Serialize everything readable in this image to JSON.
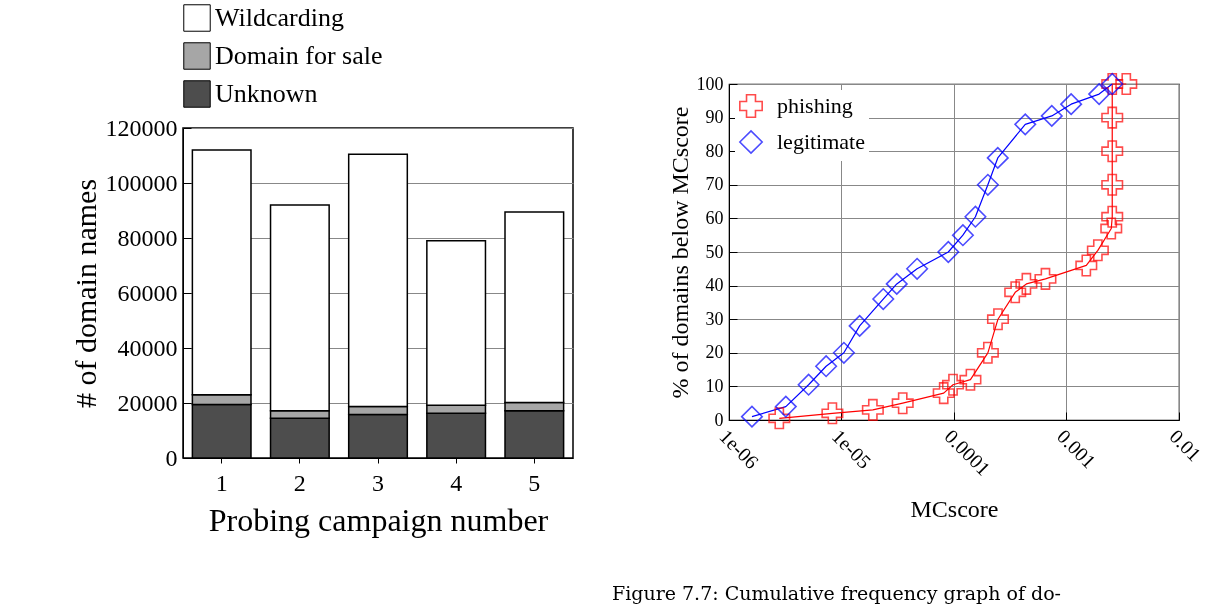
{
  "chart_data": [
    {
      "type": "bar",
      "xlabel": "Probing campaign number",
      "ylabel": "# of domain names",
      "categories": [
        "1",
        "2",
        "3",
        "4",
        "5"
      ],
      "stacked": true,
      "legend": "top",
      "grid": "y",
      "ylim": [
        0,
        120000
      ],
      "yticks": [
        0,
        {
          "value": 20000,
          "label": "20000"
        },
        {
          "value": 40000,
          "label": "40000"
        },
        {
          "value": 60000,
          "label": "60000"
        },
        {
          "value": 80000,
          "label": "80000"
        },
        {
          "value": 100000,
          "label": "100000"
        },
        {
          "value": 120000,
          "label": "120000"
        }
      ],
      "series": [
        {
          "name": "Unknown",
          "color": "#4d4d4d",
          "values": [
            19500,
            14500,
            15800,
            16300,
            17200
          ]
        },
        {
          "name": "Domain for sale",
          "color": "#a6a6a6",
          "values": [
            3500,
            2700,
            2900,
            2900,
            3000
          ]
        },
        {
          "name": "Wildcarding",
          "color": "#ffffff",
          "values": [
            89000,
            74800,
            91800,
            59800,
            69300
          ]
        }
      ]
    },
    {
      "type": "line",
      "xlabel": "MCscore",
      "ylabel": "% of domains below MCscore",
      "log": "x",
      "grid": true,
      "legend": "top left",
      "xlim": [
        1e-06,
        0.01
      ],
      "xticks": [
        {
          "value": 1e-06,
          "label": "1e-06"
        },
        {
          "value": 1e-05,
          "label": "1e-05"
        },
        0.0001,
        0.001,
        0.01
      ],
      "ylim": [
        0,
        100
      ],
      "yticks": [
        0,
        10,
        20,
        30,
        40,
        50,
        60,
        70,
        80,
        90,
        100
      ],
      "annotations": [
        "Figure 7.7: Cumulative frequency graph of do-"
      ],
      "series": [
        {
          "name": "phishing",
          "color": "#ff0000",
          "marker": "cross",
          "x": [
            2.8e-06,
            8.3e-06,
            1.9e-05,
            3.5e-05,
            8.1e-05,
            9.8e-05,
            0.00014,
            0.0002,
            0.000246,
            0.00035,
            0.00044,
            0.00065,
            0.0015,
            0.0019,
            0.0025,
            0.00255,
            0.00255,
            0.00255,
            0.00255,
            0.00255,
            0.0034
          ],
          "values": [
            0.5,
            2,
            3,
            5,
            8,
            10.5,
            12,
            20,
            30,
            38,
            40.5,
            42,
            46,
            50.5,
            57,
            60.5,
            70,
            80,
            90,
            100,
            100
          ]
        },
        {
          "name": "legitimate",
          "color": "#0000ff",
          "marker": "diamond",
          "x": [
            1.6e-06,
            3.2e-06,
            5.1e-06,
            7.3e-06,
            1.05e-05,
            1.45e-05,
            2.35e-05,
            3.1e-05,
            4.7e-05,
            8.9e-05,
            0.00012,
            0.000155,
            0.0002,
            0.000245,
            0.00043,
            0.00074,
            0.0011,
            0.00195,
            0.00255
          ],
          "values": [
            1,
            4,
            10.5,
            16,
            20,
            28,
            36,
            40.5,
            45,
            50,
            55,
            60.5,
            70,
            78,
            88,
            90.5,
            94,
            97,
            100
          ]
        }
      ]
    }
  ]
}
